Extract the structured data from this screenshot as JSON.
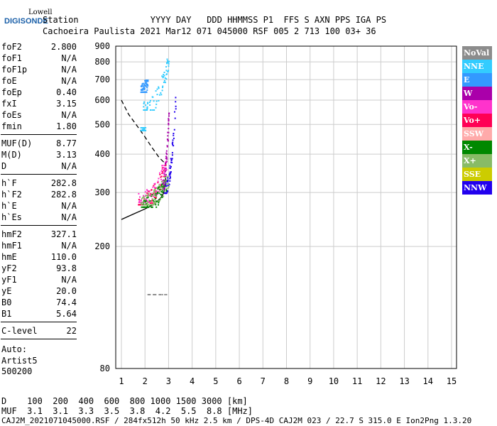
{
  "logo": {
    "line1": "Lowell",
    "line2": "DIGISONDE"
  },
  "header": {
    "row1": "Station              YYYY DAY   DDD HHMMSS P1  FFS S AXN PPS IGA PS",
    "row2": "Cachoeira Paulista 2021 Mar12 071 045000 RSF 005 2 713 100 03+ 36"
  },
  "params": [
    {
      "label": "foF2",
      "value": "2.800"
    },
    {
      "label": "foF1",
      "value": "N/A"
    },
    {
      "label": "foF1p",
      "value": "N/A"
    },
    {
      "label": "foE",
      "value": "N/A"
    },
    {
      "label": "foEp",
      "value": "0.40"
    },
    {
      "label": "fxI",
      "value": "3.15"
    },
    {
      "label": "foEs",
      "value": "N/A"
    },
    {
      "label": "fmin",
      "value": "1.80"
    },
    {
      "label": "MUF(D)",
      "value": "8.77"
    },
    {
      "label": "M(D)",
      "value": "3.13"
    },
    {
      "label": "D",
      "value": "N/A"
    },
    {
      "label": "h`F",
      "value": "282.8"
    },
    {
      "label": "h`F2",
      "value": "282.8"
    },
    {
      "label": "h`E",
      "value": "N/A"
    },
    {
      "label": "h`Es",
      "value": "N/A"
    },
    {
      "label": "hmF2",
      "value": "327.1"
    },
    {
      "label": "hmF1",
      "value": "N/A"
    },
    {
      "label": "hmE",
      "value": "110.0"
    },
    {
      "label": "yF2",
      "value": "93.8"
    },
    {
      "label": "yF1",
      "value": "N/A"
    },
    {
      "label": "yE",
      "value": "20.0"
    },
    {
      "label": "B0",
      "value": "74.4"
    },
    {
      "label": "B1",
      "value": "5.64"
    },
    {
      "label": "C-level",
      "value": "22"
    }
  ],
  "autoscaling": {
    "line1": "Auto:",
    "line2": "Artist5",
    "line3": "500200"
  },
  "legend": [
    {
      "label": "NoVal",
      "color": "#8c8c8c"
    },
    {
      "label": "NNE",
      "color": "#33ccff"
    },
    {
      "label": "E",
      "color": "#3399ff"
    },
    {
      "label": "W",
      "color": "#aa00aa"
    },
    {
      "label": "Vo-",
      "color": "#ff33cc"
    },
    {
      "label": "Vo+",
      "color": "#ff0055"
    },
    {
      "label": "SSW",
      "color": "#ffaaaa"
    },
    {
      "label": "X-",
      "color": "#008800"
    },
    {
      "label": "X+",
      "color": "#88bb66"
    },
    {
      "label": "SSE",
      "color": "#cccc00"
    },
    {
      "label": "NNW",
      "color": "#2200ee"
    }
  ],
  "muf_table": {
    "row1": "D    100  200  400  600  800 1000 1500 3000 [km]",
    "row2": "MUF  3.1  3.1  3.3  3.5  3.8  4.2  5.5  8.8 [MHz]"
  },
  "footer": "CAJ2M_2021071045000.RSF / 284fx512h 50 kHz 2.5 km / DPS-4D CAJ2M 023 / 22.7 S 315.0 E Ion2Png 1.3.20",
  "chart_data": {
    "type": "scatter",
    "x": {
      "range": [
        1,
        15
      ],
      "ticks": [
        1,
        2,
        3,
        4,
        5,
        6,
        7,
        8,
        9,
        10,
        11,
        12,
        13,
        14,
        15
      ]
    },
    "y": {
      "range": [
        80,
        900
      ],
      "ticks": [
        80,
        200,
        300,
        400,
        500,
        600,
        700,
        800,
        900
      ],
      "scale": "log"
    },
    "grid": true,
    "curves": [
      {
        "name": "",
        "style": "solid",
        "points": [
          [
            1.0,
            245
          ],
          [
            1.5,
            255
          ],
          [
            2.0,
            265
          ],
          [
            2.4,
            275
          ],
          [
            2.7,
            290
          ],
          [
            2.8,
            300
          ],
          [
            2.85,
            320
          ],
          [
            2.9,
            345
          ]
        ]
      },
      {
        "name": "",
        "style": "dashed",
        "points": [
          [
            1.0,
            600
          ],
          [
            1.3,
            540
          ],
          [
            1.7,
            490
          ],
          [
            2.0,
            455
          ],
          [
            2.3,
            420
          ],
          [
            2.6,
            390
          ],
          [
            2.9,
            370
          ]
        ]
      }
    ],
    "echo_clusters": [
      {
        "color": "NNW",
        "x": [
          2.8,
          3.3
        ],
        "y": [
          300,
          630
        ]
      },
      {
        "color": "W",
        "x": [
          2.7,
          3.0
        ],
        "y": [
          310,
          560
        ]
      },
      {
        "color": "Vo+",
        "x": [
          1.7,
          2.9
        ],
        "y": [
          275,
          370
        ]
      },
      {
        "color": "Vo-",
        "x": [
          1.7,
          2.9
        ],
        "y": [
          280,
          380
        ]
      },
      {
        "color": "X-",
        "x": [
          1.8,
          2.9
        ],
        "y": [
          270,
          330
        ]
      },
      {
        "color": "X+",
        "x": [
          1.8,
          3.0
        ],
        "y": [
          275,
          340
        ]
      },
      {
        "color": "NNE",
        "x": [
          1.9,
          3.0
        ],
        "y": [
          560,
          820
        ]
      },
      {
        "color": "E",
        "x": [
          1.8,
          2.1
        ],
        "y": [
          640,
          700
        ]
      },
      {
        "color": "NNE",
        "x": [
          1.8,
          2.0
        ],
        "y": [
          480,
          490
        ]
      },
      {
        "color": "NoVal",
        "x": [
          2.0,
          2.9
        ],
        "y": [
          140,
          140
        ]
      }
    ]
  }
}
